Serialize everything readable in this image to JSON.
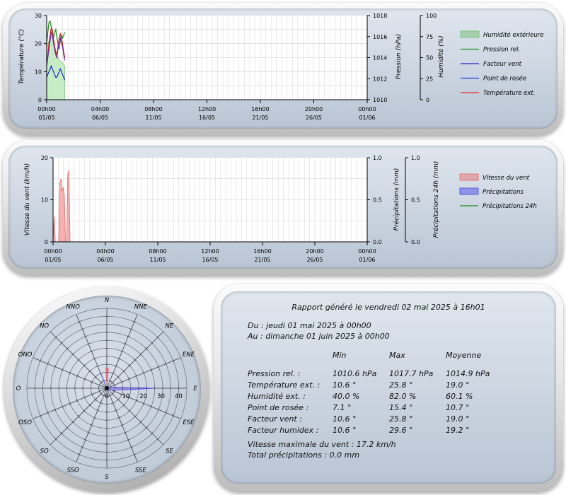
{
  "chart1": {
    "y1_label": "Température (°C)",
    "y2_label": "Pression (hPa)",
    "y3_label": "Humidité (%)",
    "y1_ticks": [
      "0",
      "10",
      "20",
      "30"
    ],
    "y2_ticks": [
      "1010",
      "1012",
      "1014",
      "1016",
      "1018"
    ],
    "y3_ticks": [
      "0",
      "25",
      "50",
      "75",
      "100"
    ],
    "x_ticks": [
      {
        "time": "00h00",
        "date": "01/05"
      },
      {
        "time": "04h00",
        "date": "06/05"
      },
      {
        "time": "08h00",
        "date": "11/05"
      },
      {
        "time": "12h00",
        "date": "16/05"
      },
      {
        "time": "16h00",
        "date": "21/05"
      },
      {
        "time": "20h00",
        "date": "26/05"
      },
      {
        "time": "00h00",
        "date": "01/06"
      }
    ],
    "legend": [
      {
        "label": "Humidité extérieure",
        "color": "#7ec07e",
        "kind": "area"
      },
      {
        "label": "Pression rel.",
        "color": "#1a8a1a",
        "kind": "line"
      },
      {
        "label": "Facteur vent",
        "color": "#2222cc",
        "kind": "line"
      },
      {
        "label": "Point de rosée",
        "color": "#1a3adc",
        "kind": "line"
      },
      {
        "label": "Température ext.",
        "color": "#e03030",
        "kind": "line"
      }
    ]
  },
  "chart2": {
    "y1_label": "Vitesse du vent (km/h)",
    "y2_label": "Précipitations (mm)",
    "y3_label": "Précipitations 24h (mm)",
    "y1_ticks": [
      "0",
      "10",
      "20"
    ],
    "y2_ticks": [
      "0.0",
      "0.5",
      "1.0"
    ],
    "y3_ticks": [
      "0.0",
      "0.5",
      "1.0"
    ],
    "x_ticks": [
      {
        "time": "00h00",
        "date": "01/05"
      },
      {
        "time": "04h00",
        "date": "06/05"
      },
      {
        "time": "08h00",
        "date": "11/05"
      },
      {
        "time": "12h00",
        "date": "16/05"
      },
      {
        "time": "16h00",
        "date": "21/05"
      },
      {
        "time": "20h00",
        "date": "26/05"
      },
      {
        "time": "00h00",
        "date": "01/06"
      }
    ],
    "legend": [
      {
        "label": "Vitesse du vent",
        "color": "#e67a7a",
        "kind": "area"
      },
      {
        "label": "Précipitations",
        "color": "#5a5ae6",
        "kind": "area"
      },
      {
        "label": "Précipitations 24h",
        "color": "#1a8a1a",
        "kind": "line"
      }
    ]
  },
  "windrose": {
    "directions": [
      "N",
      "NNE",
      "NE",
      "ENE",
      "E",
      "ESE",
      "SE",
      "SSE",
      "S",
      "SSO",
      "SO",
      "OSO",
      "O",
      "ONO",
      "NO",
      "NNO"
    ],
    "radial_ticks": [
      "10",
      "20",
      "30",
      "40"
    ],
    "center_label": "0"
  },
  "report": {
    "title": "Rapport généré le vendredi 02 mai 2025 à 16h01",
    "from": "Du : jeudi 01 mai 2025 à 00h00",
    "to": "Au : dimanche 01 juin 2025 à 00h00",
    "columns": [
      "Min",
      "Max",
      "Moyenne"
    ],
    "rows": [
      {
        "label": "Pression rel. :",
        "min": "1010.6 hPa",
        "max": "1017.7 hPa",
        "avg": "1014.9 hPa"
      },
      {
        "label": "Température ext. :",
        "min": "10.6 °",
        "max": "25.8 °",
        "avg": "19.0 °"
      },
      {
        "label": "Humidité ext. :",
        "min": "40.0 %",
        "max": "82.0 %",
        "avg": "60.1 %"
      },
      {
        "label": "Point de rosée :",
        "min": "7.1 °",
        "max": "15.4 °",
        "avg": "10.7 °"
      },
      {
        "label": "Facteur vent :",
        "min": "10.6 °",
        "max": "25.8 °",
        "avg": "19.0 °"
      },
      {
        "label": "Facteur humidex :",
        "min": "10.6 °",
        "max": "29.6 °",
        "avg": "19.2 °"
      }
    ],
    "max_wind": "Vitesse maximale du vent : 17.2 km/h",
    "total_rain": "Total précipitations : 0.0 mm"
  }
}
